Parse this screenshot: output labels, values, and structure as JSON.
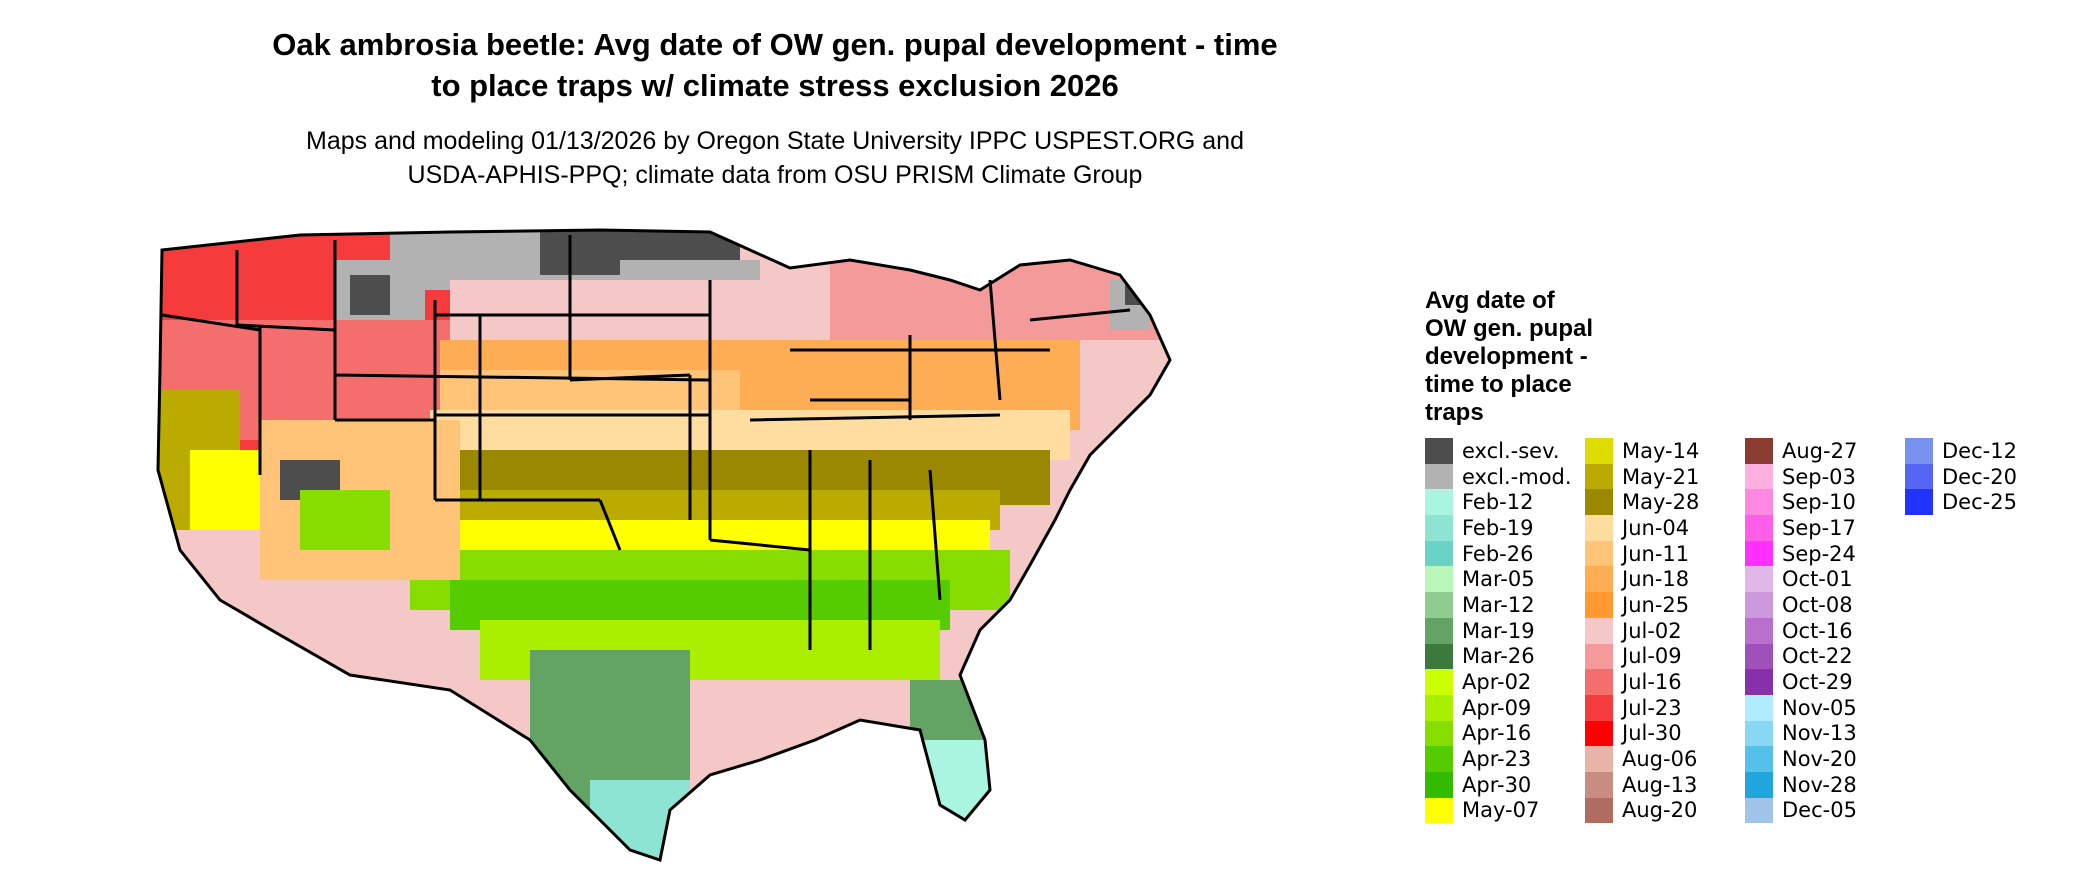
{
  "title_line1": "Oak ambrosia beetle: Avg date of OW gen. pupal development - time",
  "title_line2": "to place traps w/ climate stress exclusion 2026",
  "subtitle_line1": "Maps and modeling 01/13/2026 by Oregon State University IPPC USPEST.ORG and",
  "subtitle_line2": "USDA-APHIS-PPQ; climate data from OSU PRISM Climate Group",
  "legend": {
    "title_lines": [
      "Avg date of",
      "OW gen. pupal",
      "development -",
      "time to place",
      "traps"
    ],
    "columns": [
      [
        {
          "label": "excl.-sev.",
          "color": "#4d4d4d"
        },
        {
          "label": "excl.-mod.",
          "color": "#b2b2b2"
        },
        {
          "label": "Feb-12",
          "color": "#aaf5e0"
        },
        {
          "label": "Feb-19",
          "color": "#8ee4d2"
        },
        {
          "label": "Feb-26",
          "color": "#6ad2c6"
        },
        {
          "label": "Mar-05",
          "color": "#b8f7b8"
        },
        {
          "label": "Mar-12",
          "color": "#8fcc8f"
        },
        {
          "label": "Mar-19",
          "color": "#63a363"
        },
        {
          "label": "Mar-26",
          "color": "#3c7a3c"
        },
        {
          "label": "Apr-02",
          "color": "#ccff00"
        },
        {
          "label": "Apr-09",
          "color": "#aaee00"
        },
        {
          "label": "Apr-16",
          "color": "#88dd00"
        },
        {
          "label": "Apr-23",
          "color": "#55cc00"
        },
        {
          "label": "Apr-30",
          "color": "#33bb00"
        },
        {
          "label": "May-07",
          "color": "#ffff00"
        }
      ],
      [
        {
          "label": "May-14",
          "color": "#dddd00"
        },
        {
          "label": "May-21",
          "color": "#bbaa00"
        },
        {
          "label": "May-28",
          "color": "#998800"
        },
        {
          "label": "Jun-04",
          "color": "#ffdda0"
        },
        {
          "label": "Jun-11",
          "color": "#ffc478"
        },
        {
          "label": "Jun-18",
          "color": "#ffad55"
        },
        {
          "label": "Jun-25",
          "color": "#ff9930"
        },
        {
          "label": "Jul-02",
          "color": "#f5c8c8"
        },
        {
          "label": "Jul-09",
          "color": "#f59a9a"
        },
        {
          "label": "Jul-16",
          "color": "#f56e6e"
        },
        {
          "label": "Jul-23",
          "color": "#f53b3b"
        },
        {
          "label": "Jul-30",
          "color": "#ff0000"
        },
        {
          "label": "Aug-06",
          "color": "#e8b4a8"
        },
        {
          "label": "Aug-13",
          "color": "#c88c80"
        },
        {
          "label": "Aug-20",
          "color": "#b06c60"
        }
      ],
      [
        {
          "label": "Aug-27",
          "color": "#8b3c30"
        },
        {
          "label": "Sep-03",
          "color": "#ffb0e0"
        },
        {
          "label": "Sep-10",
          "color": "#ff88e0"
        },
        {
          "label": "Sep-17",
          "color": "#ff5ee8"
        },
        {
          "label": "Sep-24",
          "color": "#ff30ff"
        },
        {
          "label": "Oct-01",
          "color": "#e0b8e8"
        },
        {
          "label": "Oct-08",
          "color": "#cc99dd"
        },
        {
          "label": "Oct-16",
          "color": "#b870cc"
        },
        {
          "label": "Oct-22",
          "color": "#a050bb"
        },
        {
          "label": "Oct-29",
          "color": "#8830aa"
        },
        {
          "label": "Nov-05",
          "color": "#b0ecff"
        },
        {
          "label": "Nov-13",
          "color": "#88d8f5"
        },
        {
          "label": "Nov-20",
          "color": "#55c0ea"
        },
        {
          "label": "Nov-28",
          "color": "#22a5dd"
        },
        {
          "label": "Dec-05",
          "color": "#a0c4e8"
        }
      ],
      [
        {
          "label": "Dec-12",
          "color": "#7890ee"
        },
        {
          "label": "Dec-20",
          "color": "#5566f5"
        },
        {
          "label": "Dec-25",
          "color": "#2233ff"
        }
      ]
    ]
  },
  "map_colors": {
    "land_base": "#f5c8c8",
    "border": "#000000",
    "excl_sev": "#4d4d4d",
    "excl_mod": "#b2b2b2",
    "red": "#f53b3b",
    "orange": "#ffad55",
    "light_orange": "#ffdda0",
    "olive": "#998800",
    "yellow": "#ffff00",
    "green": "#55cc00",
    "dark_green": "#3c7a3c",
    "teal": "#aaf5e0"
  }
}
